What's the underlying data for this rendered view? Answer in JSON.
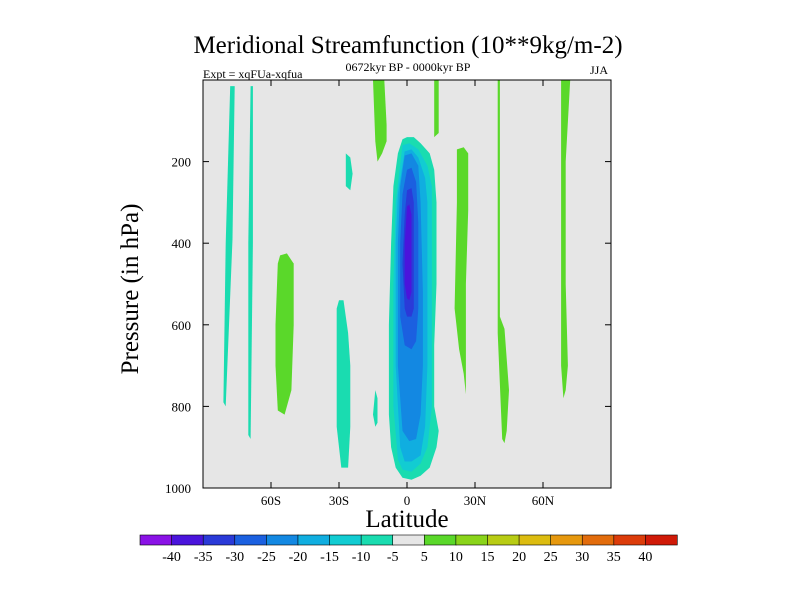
{
  "chart_data": {
    "type": "contour",
    "title": "Meridional Streamfunction (10**9kg/m-2)",
    "left_subtitle": "Expt = xqFUa-xqfua",
    "center_subtitle": "0672kyr BP - 0000kyr BP",
    "right_subtitle": "JJA",
    "xlabel": "Latitude",
    "ylabel": "Pressure (in hPa)",
    "xlim": [
      -90,
      90
    ],
    "ylim": [
      1000,
      0
    ],
    "x_ticks": [
      {
        "value": -60,
        "label": "60S"
      },
      {
        "value": -30,
        "label": "30S"
      },
      {
        "value": 0,
        "label": "0"
      },
      {
        "value": 30,
        "label": "30N"
      },
      {
        "value": 60,
        "label": "60N"
      }
    ],
    "y_ticks": [
      {
        "value": 200,
        "label": "200"
      },
      {
        "value": 400,
        "label": "400"
      },
      {
        "value": 600,
        "label": "600"
      },
      {
        "value": 800,
        "label": "800"
      },
      {
        "value": 1000,
        "label": "1000"
      }
    ],
    "background_color": "#e6e6e6",
    "colorbar": {
      "levels": [
        "-40",
        "-35",
        "-30",
        "-25",
        "-20",
        "-15",
        "-10",
        "-5",
        "5",
        "10",
        "15",
        "20",
        "25",
        "30",
        "35",
        "40"
      ],
      "colors": [
        "#8a12e6",
        "#4a14dc",
        "#2a3ad8",
        "#1b60e0",
        "#1388e2",
        "#10aee0",
        "#12ccd2",
        "#1adcb0",
        "#e6e6e6",
        "#5ad82a",
        "#8ad41a",
        "#b8cc14",
        "#dcbc10",
        "#e6980e",
        "#e26c0c",
        "#dc3c0a",
        "#d01a08"
      ]
    },
    "regions": [
      {
        "level": -10,
        "color": "#1adcb0",
        "points": [
          [
            -78,
            15
          ],
          [
            -76,
            15
          ],
          [
            -77,
            390
          ],
          [
            -80,
            800
          ],
          [
            -81,
            790
          ],
          [
            -80,
            400
          ]
        ]
      },
      {
        "level": -10,
        "color": "#1adcb0",
        "points": [
          [
            -69,
            15
          ],
          [
            -68,
            15
          ],
          [
            -68,
            400
          ],
          [
            -69,
            880
          ],
          [
            -70,
            870
          ],
          [
            -70,
            400
          ]
        ]
      },
      {
        "level": 5,
        "color": "#5ad82a",
        "points": [
          [
            -56,
            430
          ],
          [
            -53,
            425
          ],
          [
            -50,
            450
          ],
          [
            -50,
            600
          ],
          [
            -51,
            760
          ],
          [
            -54,
            820
          ],
          [
            -57,
            810
          ],
          [
            -58,
            700
          ],
          [
            -58,
            600
          ],
          [
            -57,
            450
          ]
        ]
      },
      {
        "level": -10,
        "color": "#1adcb0",
        "points": [
          [
            -27,
            180
          ],
          [
            -25,
            190
          ],
          [
            -24,
            230
          ],
          [
            -25,
            270
          ],
          [
            -27,
            260
          ]
        ]
      },
      {
        "level": -10,
        "color": "#1adcb0",
        "points": [
          [
            -30,
            540
          ],
          [
            -28,
            540
          ],
          [
            -26,
            620
          ],
          [
            -25,
            700
          ],
          [
            -25,
            850
          ],
          [
            -26,
            950
          ],
          [
            -29,
            950
          ],
          [
            -31,
            850
          ],
          [
            -31,
            650
          ],
          [
            -31,
            560
          ]
        ]
      },
      {
        "level": -10,
        "color": "#1adcb0",
        "points": [
          [
            -14,
            760
          ],
          [
            -13,
            780
          ],
          [
            -13,
            840
          ],
          [
            -14,
            850
          ],
          [
            -15,
            820
          ]
        ]
      },
      {
        "level": 5,
        "color": "#5ad82a",
        "points": [
          [
            -15,
            0
          ],
          [
            -10,
            0
          ],
          [
            -9,
            110
          ],
          [
            -9,
            150
          ],
          [
            -11,
            180
          ],
          [
            -13,
            200
          ],
          [
            -14,
            150
          ]
        ]
      },
      {
        "level": 5,
        "color": "#5ad82a",
        "points": [
          [
            12,
            0
          ],
          [
            14,
            0
          ],
          [
            14,
            130
          ],
          [
            12,
            140
          ]
        ]
      },
      {
        "level": 5,
        "color": "#5ad82a",
        "points": [
          [
            40,
            0
          ],
          [
            41,
            0
          ],
          [
            41,
            580
          ],
          [
            43,
            610
          ],
          [
            45,
            760
          ],
          [
            44,
            860
          ],
          [
            43,
            890
          ],
          [
            42,
            880
          ],
          [
            40,
            620
          ]
        ]
      },
      {
        "level": 5,
        "color": "#5ad82a",
        "points": [
          [
            68,
            0
          ],
          [
            72,
            0
          ],
          [
            70,
            200
          ],
          [
            70,
            500
          ],
          [
            71,
            700
          ],
          [
            70,
            760
          ],
          [
            69,
            780
          ],
          [
            68,
            700
          ]
        ]
      },
      {
        "level": 5,
        "color": "#5ad82a",
        "points": [
          [
            22,
            170
          ],
          [
            25,
            165
          ],
          [
            27,
            180
          ],
          [
            27,
            320
          ],
          [
            26,
            500
          ],
          [
            26,
            660
          ],
          [
            26,
            770
          ],
          [
            25,
            720
          ],
          [
            23,
            660
          ],
          [
            21,
            560
          ],
          [
            22,
            300
          ]
        ]
      },
      {
        "level": -10,
        "color": "#1adcb0",
        "points": [
          [
            -4,
            180
          ],
          [
            -2,
            145
          ],
          [
            0,
            140
          ],
          [
            3,
            140
          ],
          [
            6,
            155
          ],
          [
            10,
            180
          ],
          [
            12,
            220
          ],
          [
            13,
            300
          ],
          [
            13,
            500
          ],
          [
            12,
            650
          ],
          [
            12,
            800
          ],
          [
            14,
            860
          ],
          [
            13,
            900
          ],
          [
            10,
            950
          ],
          [
            6,
            970
          ],
          [
            2,
            980
          ],
          [
            -2,
            975
          ],
          [
            -5,
            950
          ],
          [
            -7,
            900
          ],
          [
            -8,
            820
          ],
          [
            -8,
            600
          ],
          [
            -7,
            400
          ],
          [
            -6,
            260
          ]
        ]
      },
      {
        "level": -15,
        "color": "#12ccd2",
        "points": [
          [
            -2,
            160
          ],
          [
            1,
            155
          ],
          [
            5,
            170
          ],
          [
            9,
            210
          ],
          [
            11,
            260
          ],
          [
            11,
            400
          ],
          [
            11,
            520
          ],
          [
            11,
            800
          ],
          [
            9,
            900
          ],
          [
            6,
            940
          ],
          [
            2,
            960
          ],
          [
            -2,
            955
          ],
          [
            -4,
            930
          ],
          [
            -6,
            800
          ],
          [
            -6,
            500
          ],
          [
            -5,
            300
          ]
        ]
      },
      {
        "level": -20,
        "color": "#10aee0",
        "points": [
          [
            -1,
            175
          ],
          [
            2,
            170
          ],
          [
            5,
            190
          ],
          [
            8,
            240
          ],
          [
            9,
            300
          ],
          [
            9,
            500
          ],
          [
            9,
            700
          ],
          [
            8,
            850
          ],
          [
            6,
            920
          ],
          [
            2,
            935
          ],
          [
            -1,
            935
          ],
          [
            -3,
            900
          ],
          [
            -5,
            700
          ],
          [
            -5,
            400
          ],
          [
            -4,
            280
          ]
        ]
      },
      {
        "level": -25,
        "color": "#1388e2",
        "points": [
          [
            -1,
            185
          ],
          [
            2,
            180
          ],
          [
            5,
            210
          ],
          [
            6,
            300
          ],
          [
            7,
            520
          ],
          [
            7,
            700
          ],
          [
            6,
            820
          ],
          [
            4,
            880
          ],
          [
            1,
            885
          ],
          [
            -2,
            860
          ],
          [
            -4,
            700
          ],
          [
            -4,
            400
          ],
          [
            -3,
            260
          ]
        ]
      },
      {
        "level": -30,
        "color": "#1b60e0",
        "points": [
          [
            0,
            220
          ],
          [
            2,
            215
          ],
          [
            4,
            250
          ],
          [
            5,
            350
          ],
          [
            5,
            560
          ],
          [
            4,
            640
          ],
          [
            2,
            660
          ],
          [
            -1,
            650
          ],
          [
            -3,
            580
          ],
          [
            -3,
            400
          ],
          [
            -2,
            280
          ]
        ]
      },
      {
        "level": -35,
        "color": "#2a3ad8",
        "points": [
          [
            0,
            270
          ],
          [
            2,
            265
          ],
          [
            3,
            300
          ],
          [
            3,
            450
          ],
          [
            3,
            560
          ],
          [
            2,
            580
          ],
          [
            0,
            580
          ],
          [
            -1,
            560
          ],
          [
            -2,
            450
          ],
          [
            -1,
            330
          ]
        ]
      },
      {
        "level": -40,
        "color": "#4a14dc",
        "points": [
          [
            0,
            310
          ],
          [
            1,
            305
          ],
          [
            2,
            330
          ],
          [
            2,
            450
          ],
          [
            2,
            520
          ],
          [
            1,
            540
          ],
          [
            0,
            535
          ],
          [
            -1,
            500
          ],
          [
            -1,
            400
          ]
        ]
      }
    ]
  }
}
